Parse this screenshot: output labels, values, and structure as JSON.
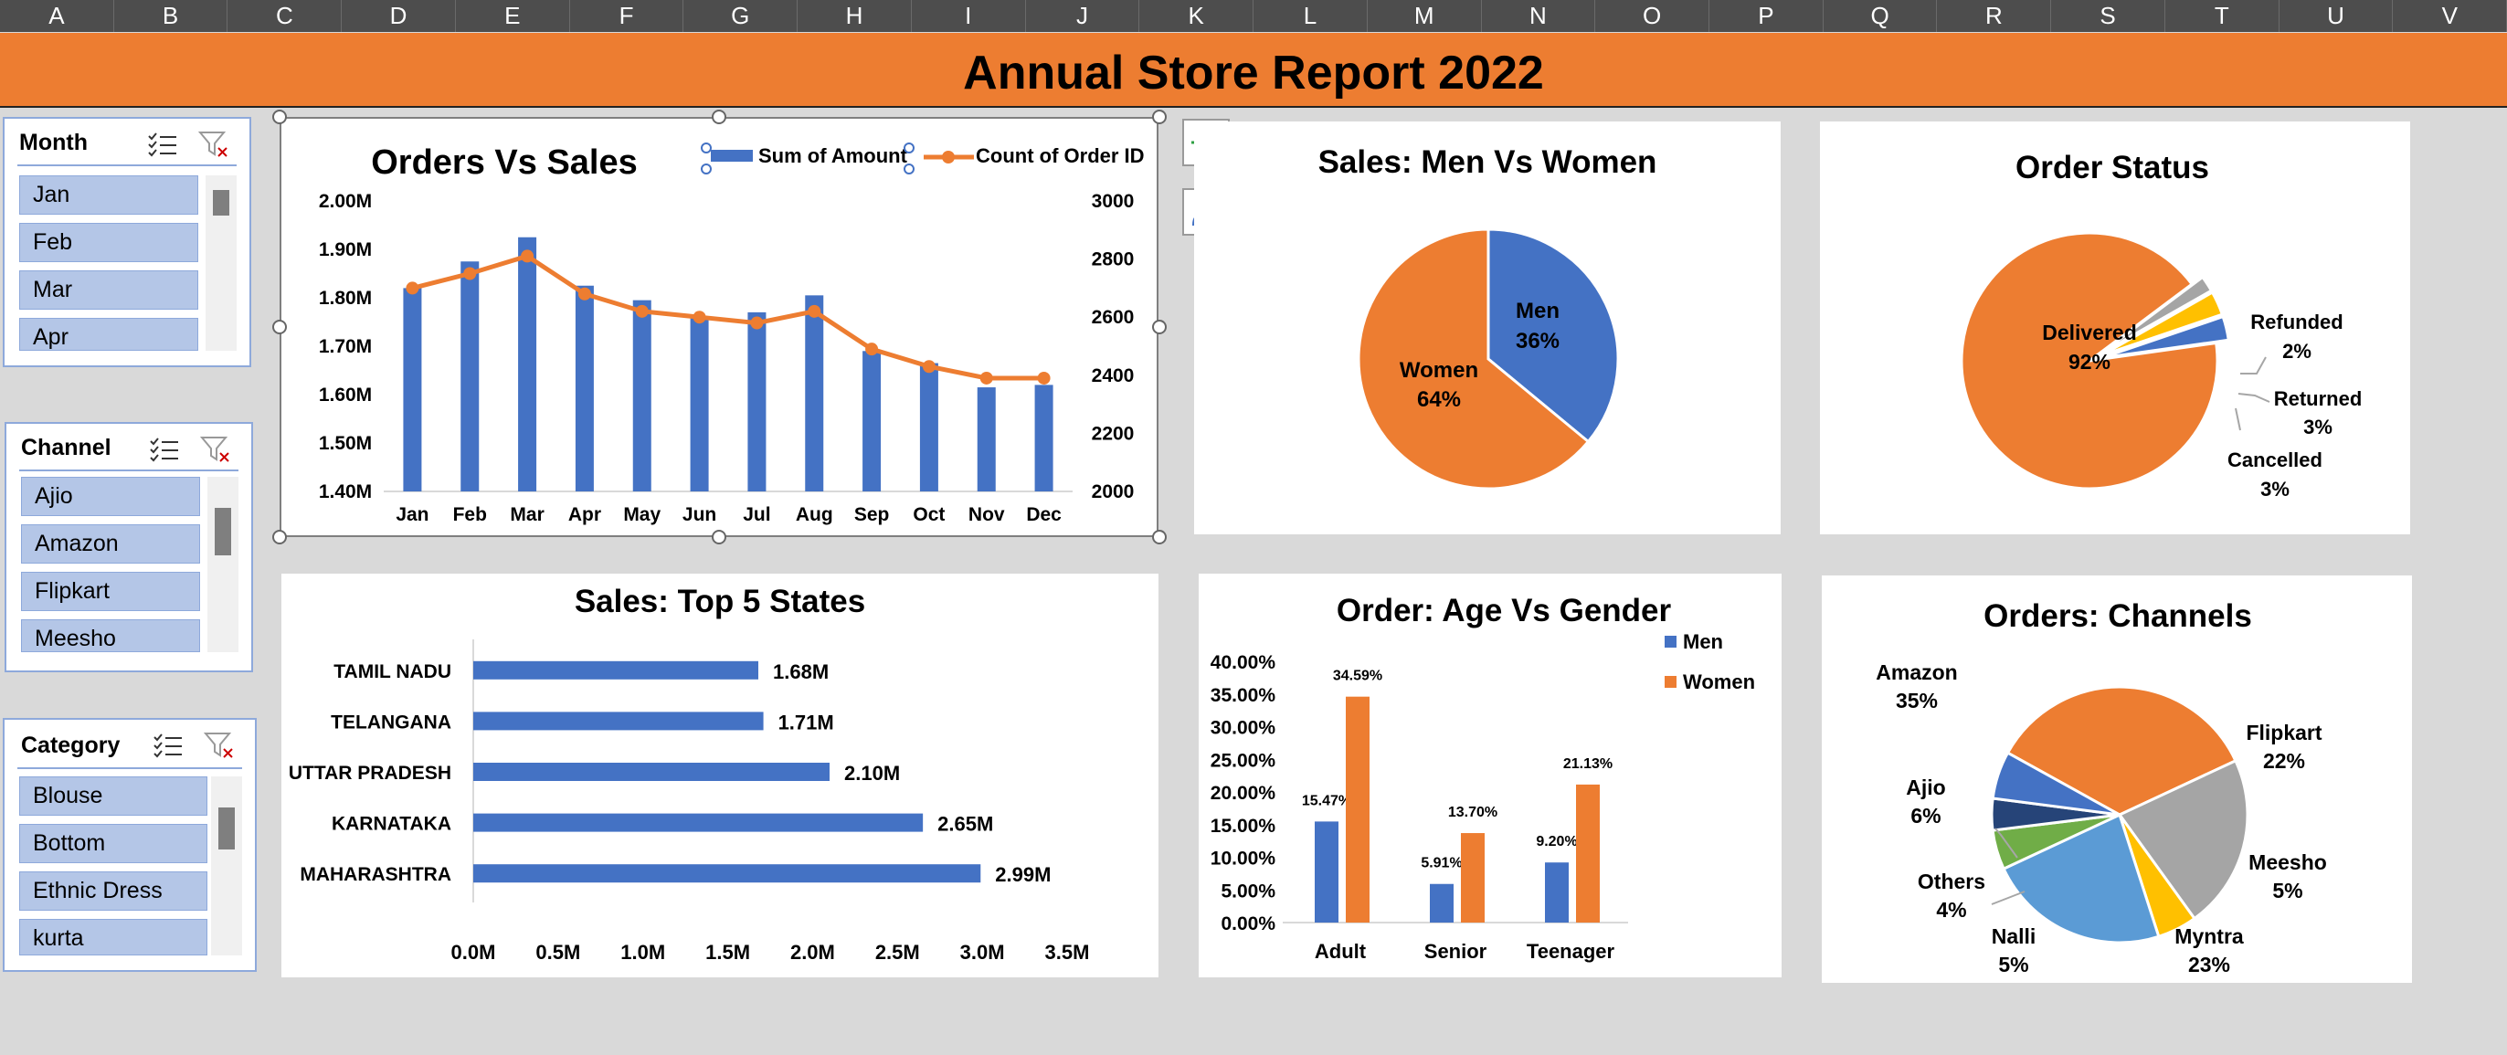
{
  "columns": [
    "A",
    "B",
    "C",
    "D",
    "E",
    "F",
    "G",
    "H",
    "I",
    "J",
    "K",
    "L",
    "M",
    "N",
    "O",
    "P",
    "Q",
    "R",
    "S",
    "T",
    "U",
    "V"
  ],
  "title": "Annual Store Report 2022",
  "slicers": {
    "month": {
      "label": "Month",
      "items": [
        "Jan",
        "Feb",
        "Mar",
        "Apr"
      ]
    },
    "channel": {
      "label": "Channel",
      "items": [
        "Ajio",
        "Amazon",
        "Flipkart",
        "Meesho"
      ]
    },
    "category": {
      "label": "Category",
      "items": [
        "Blouse",
        "Bottom",
        "Ethnic Dress",
        "kurta"
      ]
    }
  },
  "colors": {
    "blue": "#4472c4",
    "orange": "#ed7d31",
    "gray": "#a5a5a5",
    "yellow": "#ffc000",
    "lightblue": "#5b9bd5",
    "darkblue": "#264478",
    "green": "#70ad47",
    "banner": "#ed7d31"
  },
  "chart_data": [
    {
      "type": "bar+line",
      "title": "Orders Vs Sales",
      "categories": [
        "Jan",
        "Feb",
        "Mar",
        "Apr",
        "May",
        "Jun",
        "Jul",
        "Aug",
        "Sep",
        "Oct",
        "Nov",
        "Dec"
      ],
      "series": [
        {
          "name": "Sum of Amount",
          "type": "bar",
          "axis": "left",
          "values": [
            1820000,
            1875000,
            1925000,
            1825000,
            1795000,
            1760000,
            1770000,
            1805000,
            1690000,
            1665000,
            1615000,
            1620000
          ]
        },
        {
          "name": "Count of Order ID",
          "type": "line",
          "axis": "right",
          "values": [
            2700,
            2750,
            2810,
            2680,
            2620,
            2600,
            2580,
            2620,
            2490,
            2430,
            2390,
            2390
          ]
        }
      ],
      "ylim_left": [
        1400000,
        2000000
      ],
      "yticks_left": [
        "2.00M",
        "1.90M",
        "1.80M",
        "1.70M",
        "1.60M",
        "1.50M",
        "1.40M"
      ],
      "ylim_right": [
        2000,
        3000
      ],
      "yticks_right": [
        "3000",
        "2800",
        "2600",
        "2400",
        "2200",
        "2000"
      ],
      "legend": "top"
    },
    {
      "type": "pie",
      "title": "Sales: Men Vs Women",
      "slices": [
        {
          "label": "Men",
          "value": 36,
          "text": "36%"
        },
        {
          "label": "Women",
          "value": 64,
          "text": "64%"
        }
      ]
    },
    {
      "type": "pie",
      "title": "Order Status",
      "slices": [
        {
          "label": "Delivered",
          "value": 92,
          "text": "92%"
        },
        {
          "label": "Refunded",
          "value": 2,
          "text": "2%"
        },
        {
          "label": "Returned",
          "value": 3,
          "text": "3%"
        },
        {
          "label": "Cancelled",
          "value": 3,
          "text": "3%"
        }
      ]
    },
    {
      "type": "bar",
      "orientation": "horizontal",
      "title": "Sales: Top 5 States",
      "categories": [
        "TAMIL NADU",
        "TELANGANA",
        "UTTAR PRADESH",
        "KARNATAKA",
        "MAHARASHTRA"
      ],
      "values": [
        1.68,
        1.71,
        2.1,
        2.65,
        2.99
      ],
      "value_labels": [
        "1.68M",
        "1.71M",
        "2.10M",
        "2.65M",
        "2.99M"
      ],
      "xlim": [
        0,
        3.5
      ],
      "xticks": [
        "0.0M",
        "0.5M",
        "1.0M",
        "1.5M",
        "2.0M",
        "2.5M",
        "3.0M",
        "3.5M"
      ]
    },
    {
      "type": "bar",
      "title": "Order: Age Vs Gender",
      "categories": [
        "Adult",
        "Senior",
        "Teenager"
      ],
      "series": [
        {
          "name": "Men",
          "values": [
            15.47,
            5.91,
            9.2
          ],
          "labels": [
            "15.47%",
            "5.91%",
            "9.20%"
          ]
        },
        {
          "name": "Women",
          "values": [
            34.59,
            13.7,
            21.13
          ],
          "labels": [
            "34.59%",
            "13.70%",
            "21.13%"
          ]
        }
      ],
      "ylim": [
        0,
        40
      ],
      "yticks": [
        "40.00%",
        "35.00%",
        "30.00%",
        "25.00%",
        "20.00%",
        "15.00%",
        "10.00%",
        "5.00%",
        "0.00%"
      ],
      "legend": "right"
    },
    {
      "type": "pie",
      "title": "Orders: Channels",
      "slices": [
        {
          "label": "Amazon",
          "value": 35,
          "text": "35%"
        },
        {
          "label": "Flipkart",
          "value": 22,
          "text": "22%"
        },
        {
          "label": "Meesho",
          "value": 5,
          "text": "5%"
        },
        {
          "label": "Myntra",
          "value": 23,
          "text": "23%"
        },
        {
          "label": "Nalli",
          "value": 5,
          "text": "5%"
        },
        {
          "label": "Others",
          "value": 4,
          "text": "4%"
        },
        {
          "label": "Ajio",
          "value": 6,
          "text": "6%"
        }
      ]
    }
  ]
}
